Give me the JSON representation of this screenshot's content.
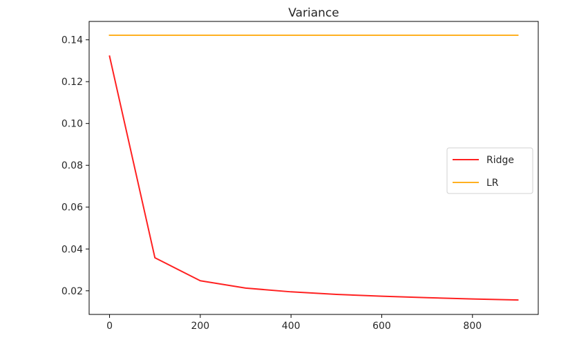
{
  "chart_data": {
    "type": "line",
    "title": "Variance",
    "xlabel": "",
    "ylabel": "",
    "xlim": [
      -45,
      945
    ],
    "ylim": [
      0.0087,
      0.1488
    ],
    "xticks": [
      0,
      200,
      400,
      600,
      800
    ],
    "xtick_labels": [
      "0",
      "200",
      "400",
      "600",
      "800"
    ],
    "yticks": [
      0.02,
      0.04,
      0.06,
      0.08,
      0.1,
      0.12,
      0.14
    ],
    "ytick_labels": [
      "0.02",
      "0.04",
      "0.06",
      "0.08",
      "0.10",
      "0.12",
      "0.14"
    ],
    "grid": false,
    "legend_position": "center-right",
    "series": [
      {
        "name": "Ridge",
        "color": "#ff2020",
        "x": [
          0,
          100,
          200,
          300,
          400,
          500,
          600,
          700,
          800,
          900
        ],
        "y": [
          0.1322,
          0.0358,
          0.0248,
          0.0213,
          0.0195,
          0.0183,
          0.0174,
          0.0167,
          0.0161,
          0.0156
        ]
      },
      {
        "name": "LR",
        "color": "#ffb020",
        "x": [
          0,
          900
        ],
        "y": [
          0.1422,
          0.1422
        ]
      }
    ]
  }
}
